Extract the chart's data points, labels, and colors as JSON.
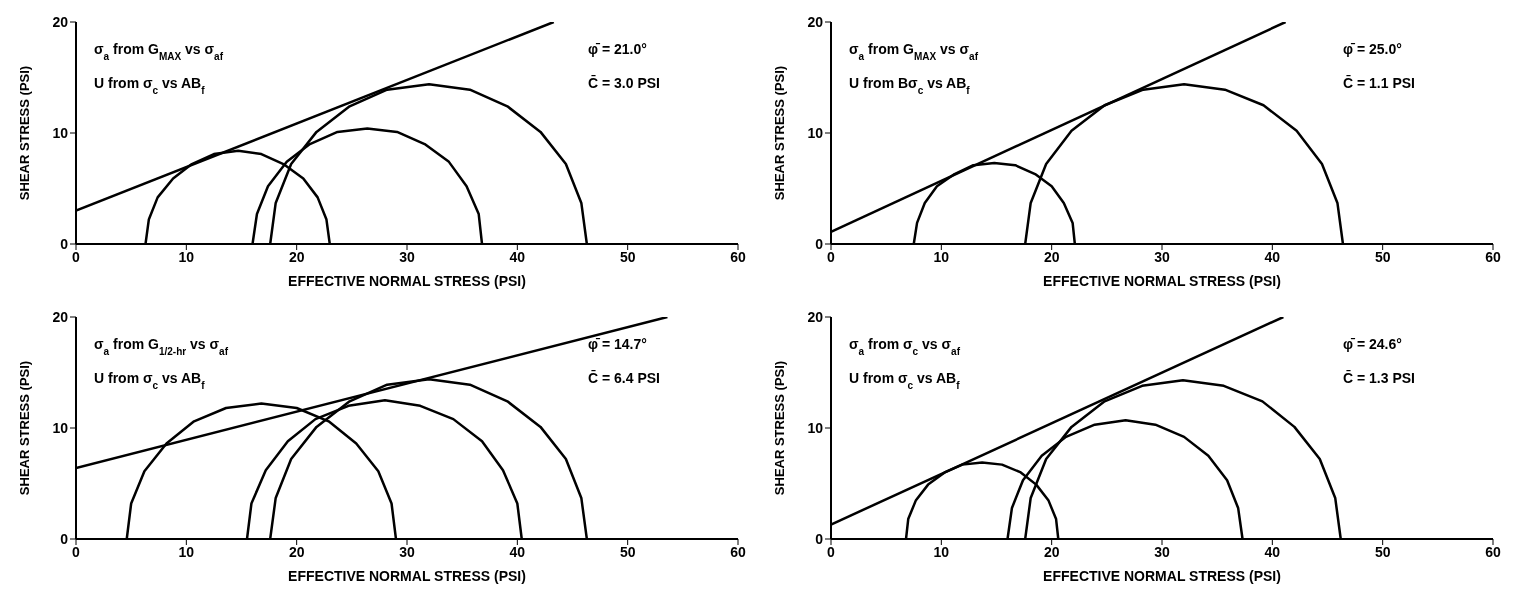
{
  "chart_data": [
    {
      "type": "line",
      "xlabel": "EFFECTIVE NORMAL STRESS (PSI)",
      "ylabel": "SHEAR STRESS (PSI)",
      "xlim": [
        0,
        60
      ],
      "xticks": [
        0,
        10,
        20,
        30,
        40,
        50,
        60
      ],
      "ylim": [
        0,
        20
      ],
      "yticks": [
        0,
        10,
        20
      ],
      "grid": false,
      "marker": "none",
      "line_style": "solid",
      "annotations": [
        "σ$_{a}$ from G$_{MAX}$ vs σ$_{af}$",
        "U from σ$_{c}$ vs AB$_{f}$",
        "φ̄ = 21.0°",
        "C̄ = 3.0 PSI"
      ],
      "series": [
        {
          "color": "#000000",
          "x": [
            0,
            43.3
          ],
          "values": [
            3.0,
            20
          ]
        },
        {
          "color": "#000000",
          "x": [
            6.3,
            6.6,
            7.4,
            8.8,
            10.5,
            12.5,
            14.7,
            16.8,
            18.8,
            20.6,
            21.9,
            22.7,
            23.0
          ],
          "values": [
            0,
            2.2,
            4.2,
            5.9,
            7.2,
            8.1,
            8.4,
            8.1,
            7.2,
            5.9,
            4.2,
            2.2,
            0
          ]
        },
        {
          "color": "#000000",
          "x": [
            16.0,
            16.4,
            17.4,
            19.1,
            21.2,
            23.7,
            26.4,
            29.1,
            31.6,
            33.8,
            35.4,
            36.5,
            36.8
          ],
          "values": [
            0,
            2.7,
            5.2,
            7.4,
            9.0,
            10.1,
            10.4,
            10.1,
            9.0,
            7.4,
            5.2,
            2.7,
            0
          ]
        },
        {
          "color": "#000000",
          "x": [
            17.6,
            18.1,
            19.5,
            21.8,
            24.8,
            28.2,
            32.0,
            35.7,
            39.1,
            42.1,
            44.4,
            45.8,
            46.3
          ],
          "values": [
            0,
            3.7,
            7.2,
            10.1,
            12.4,
            13.9,
            14.4,
            13.9,
            12.4,
            10.1,
            7.2,
            3.7,
            0
          ]
        }
      ]
    },
    {
      "type": "line",
      "xlabel": "EFFECTIVE NORMAL STRESS (PSI)",
      "ylabel": "SHEAR STRESS (PSI)",
      "xlim": [
        0,
        60
      ],
      "xticks": [
        0,
        10,
        20,
        30,
        40,
        50,
        60
      ],
      "ylim": [
        0,
        20
      ],
      "yticks": [
        0,
        10,
        20
      ],
      "grid": false,
      "marker": "none",
      "line_style": "solid",
      "annotations": [
        "σ$_{a}$ from G$_{MAX}$ vs σ$_{af}$",
        "U from Bσ$_{c}$ vs AB$_{f}$",
        "φ̄ = 25.0°",
        "C̄ = 1.1 PSI"
      ],
      "series": [
        {
          "color": "#000000",
          "x": [
            0,
            41.2
          ],
          "values": [
            1.1,
            20
          ]
        },
        {
          "color": "#000000",
          "x": [
            7.5,
            7.8,
            8.5,
            9.6,
            11.2,
            12.9,
            14.8,
            16.7,
            18.5,
            20.0,
            21.1,
            21.9,
            22.1
          ],
          "values": [
            0,
            1.9,
            3.7,
            5.2,
            6.3,
            7.1,
            7.3,
            7.1,
            6.3,
            5.2,
            3.7,
            1.9,
            0
          ]
        },
        {
          "color": "#000000",
          "x": [
            17.6,
            18.1,
            19.5,
            21.8,
            24.8,
            28.3,
            32.0,
            35.7,
            39.2,
            42.2,
            44.5,
            45.9,
            46.4
          ],
          "values": [
            0,
            3.7,
            7.2,
            10.2,
            12.5,
            13.9,
            14.4,
            13.9,
            12.5,
            10.2,
            7.2,
            3.7,
            0
          ]
        }
      ]
    },
    {
      "type": "line",
      "xlabel": "EFFECTIVE NORMAL STRESS (PSI)",
      "ylabel": "SHEAR STRESS (PSI)",
      "xlim": [
        0,
        60
      ],
      "xticks": [
        0,
        10,
        20,
        30,
        40,
        50,
        60
      ],
      "ylim": [
        0,
        20
      ],
      "yticks": [
        0,
        10,
        20
      ],
      "grid": false,
      "marker": "none",
      "line_style": "solid",
      "annotations": [
        "σ$_{a}$ from G$_{1/2-hr}$ vs σ$_{af}$",
        "U from σ$_{c}$ vs AB$_{f}$",
        "φ̄ = 14.7°",
        "C̄ = 6.4 PSI"
      ],
      "series": [
        {
          "color": "#000000",
          "x": [
            0,
            53.6
          ],
          "values": [
            6.4,
            20
          ]
        },
        {
          "color": "#000000",
          "x": [
            4.6,
            5.0,
            6.2,
            8.2,
            10.7,
            13.6,
            16.8,
            20.0,
            22.9,
            25.4,
            27.4,
            28.6,
            29.0
          ],
          "values": [
            0,
            3.2,
            6.1,
            8.6,
            10.6,
            11.8,
            12.2,
            11.8,
            10.6,
            8.6,
            6.1,
            3.2,
            0
          ]
        },
        {
          "color": "#000000",
          "x": [
            15.5,
            15.9,
            17.2,
            19.2,
            21.7,
            24.7,
            28.0,
            31.2,
            34.2,
            36.8,
            38.7,
            40.0,
            40.4
          ],
          "values": [
            0,
            3.2,
            6.2,
            8.8,
            10.8,
            12.0,
            12.5,
            12.0,
            10.8,
            8.8,
            6.2,
            3.2,
            0
          ]
        },
        {
          "color": "#000000",
          "x": [
            17.6,
            18.1,
            19.5,
            21.8,
            24.8,
            28.2,
            32.0,
            35.7,
            39.1,
            42.1,
            44.4,
            45.8,
            46.3
          ],
          "values": [
            0,
            3.7,
            7.2,
            10.1,
            12.4,
            13.9,
            14.4,
            13.9,
            12.4,
            10.1,
            7.2,
            3.7,
            0
          ]
        }
      ]
    },
    {
      "type": "line",
      "xlabel": "EFFECTIVE NORMAL STRESS (PSI)",
      "ylabel": "SHEAR STRESS (PSI)",
      "xlim": [
        0,
        60
      ],
      "xticks": [
        0,
        10,
        20,
        30,
        40,
        50,
        60
      ],
      "ylim": [
        0,
        20
      ],
      "yticks": [
        0,
        10,
        20
      ],
      "grid": false,
      "marker": "none",
      "line_style": "solid",
      "annotations": [
        "σ$_{a}$ from σ$_{c}$ vs σ$_{af}$",
        "U from σ$_{c}$ vs AB$_{f}$",
        "φ̄ = 24.6°",
        "C̄ = 1.3 PSI"
      ],
      "series": [
        {
          "color": "#000000",
          "x": [
            0,
            41.0
          ],
          "values": [
            1.3,
            20
          ]
        },
        {
          "color": "#000000",
          "x": [
            6.8,
            7.0,
            7.7,
            8.8,
            10.3,
            11.9,
            13.7,
            15.5,
            17.2,
            18.6,
            19.7,
            20.4,
            20.6
          ],
          "values": [
            0,
            1.8,
            3.5,
            4.9,
            6.0,
            6.7,
            6.9,
            6.7,
            6.0,
            4.9,
            3.5,
            1.8,
            0
          ]
        },
        {
          "color": "#000000",
          "x": [
            16.0,
            16.4,
            17.4,
            19.1,
            21.3,
            23.9,
            26.7,
            29.4,
            32.0,
            34.2,
            35.9,
            36.9,
            37.3
          ],
          "values": [
            0,
            2.8,
            5.3,
            7.5,
            9.2,
            10.3,
            10.7,
            10.3,
            9.2,
            7.5,
            5.3,
            2.8,
            0
          ]
        },
        {
          "color": "#000000",
          "x": [
            17.6,
            18.1,
            19.5,
            21.8,
            24.8,
            28.2,
            31.9,
            35.6,
            39.1,
            42.0,
            44.3,
            45.7,
            46.2
          ],
          "values": [
            0,
            3.7,
            7.2,
            10.1,
            12.4,
            13.8,
            14.3,
            13.8,
            12.4,
            10.1,
            7.2,
            3.7,
            0
          ]
        }
      ]
    }
  ]
}
